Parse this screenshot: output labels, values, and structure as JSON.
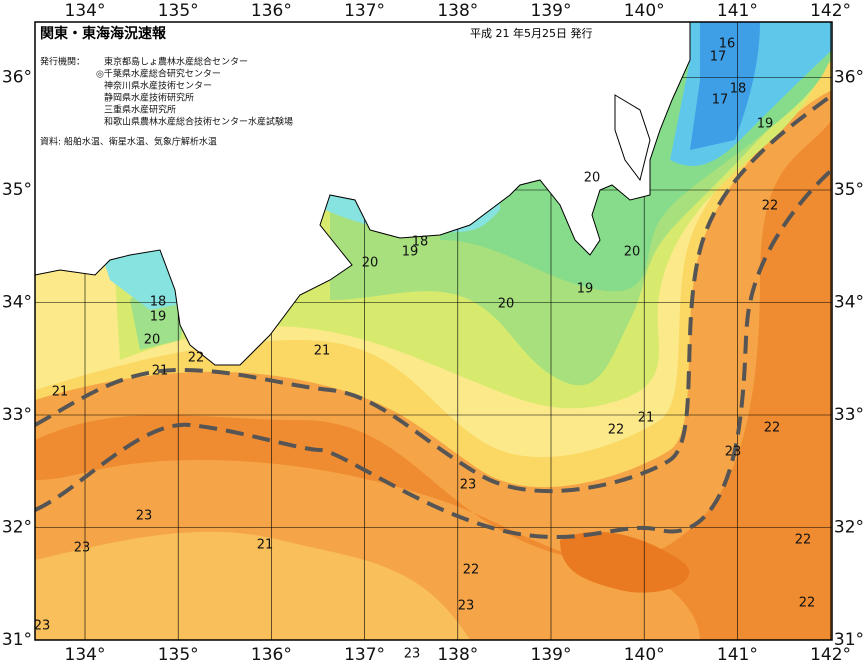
{
  "title": "関東・東海海況速報",
  "issue_date": "平成 21 年5月25日 発行",
  "issuers_label": "発行機関：",
  "issuers": [
    "東京都島しょ農林水産総合センター",
    "◎千葉県水産総合研究センター",
    "神奈川県水産技術センター",
    "静岡県水産技術研究所",
    "三重県水産研究所",
    "和歌山県農林水産総合技術センター水産試験場"
  ],
  "source": "資料: 船舶水温、衛星水温、気象庁解析水温",
  "lon_ticks": [
    {
      "value": 134,
      "label": "134°"
    },
    {
      "value": 135,
      "label": "135°"
    },
    {
      "value": 136,
      "label": "136°"
    },
    {
      "value": 137,
      "label": "137°"
    },
    {
      "value": 138,
      "label": "138°"
    },
    {
      "value": 139,
      "label": "139°"
    },
    {
      "value": 140,
      "label": "140°"
    },
    {
      "value": 141,
      "label": "141°"
    },
    {
      "value": 142,
      "label": "142°"
    }
  ],
  "lat_ticks": [
    {
      "value": 31,
      "label": "31°"
    },
    {
      "value": 32,
      "label": "32°"
    },
    {
      "value": 33,
      "label": "33°"
    },
    {
      "value": 34,
      "label": "34°"
    },
    {
      "value": 35,
      "label": "35°"
    },
    {
      "value": 36,
      "label": "36°"
    }
  ],
  "contour_labels": [
    16,
    17,
    18,
    17,
    19,
    20,
    22,
    18,
    19,
    20,
    20,
    19,
    20,
    18,
    19,
    20,
    22,
    21,
    21,
    21,
    21,
    22,
    22,
    23,
    23,
    23,
    22,
    23,
    21,
    22,
    23,
    22,
    23,
    23
  ]
}
